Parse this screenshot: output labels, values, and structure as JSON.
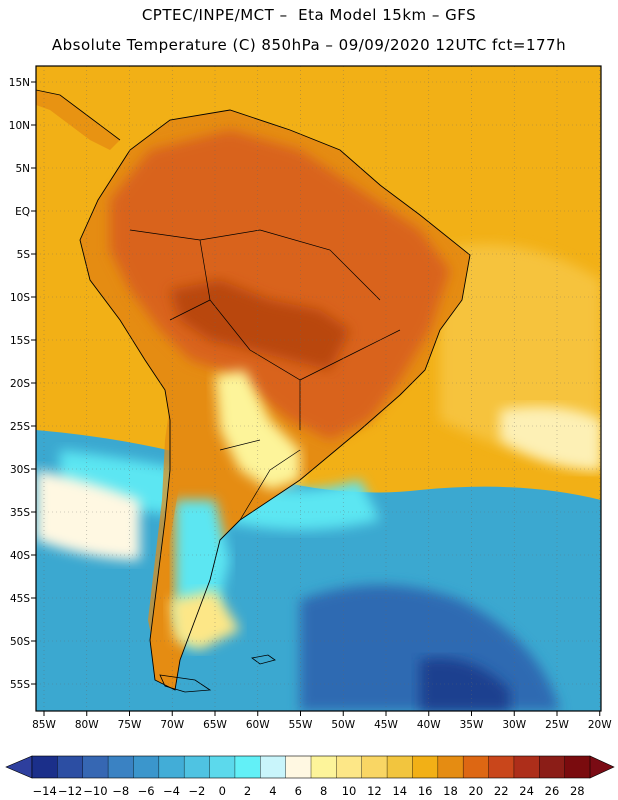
{
  "header": {
    "title_line1": "CPTEC/INPE/MCT –  Eta Model 15km – GFS",
    "title_line2": "Absolute Temperature (C) 850hPa – 09/09/2020 12UTC fct=177h"
  },
  "map": {
    "region": "South America",
    "lon_ticks": [
      "85W",
      "80W",
      "75W",
      "70W",
      "65W",
      "60W",
      "55W",
      "50W",
      "45W",
      "40W",
      "35W",
      "30W",
      "25W",
      "20W"
    ],
    "lat_ticks": [
      "15N",
      "10N",
      "5N",
      "EQ",
      "5S",
      "10S",
      "15S",
      "20S",
      "25S",
      "30S",
      "35S",
      "40S",
      "45S",
      "50S",
      "55S"
    ],
    "colors": {
      "ocean_north": "#f2b016",
      "land_hot": "#d9631c",
      "land_hotter": "#b9470e",
      "south_cold": "#3ba8d0",
      "south_colder": "#2d6bb2",
      "cyan": "#5be6f2",
      "pale_yellow": "#fde787"
    }
  },
  "colorbar": {
    "labels": [
      "-14",
      "-12",
      "-10",
      "-8",
      "-6",
      "-4",
      "-2",
      "0",
      "2",
      "4",
      "6",
      "8",
      "10",
      "12",
      "14",
      "16",
      "18",
      "20",
      "22",
      "24",
      "26",
      "28"
    ],
    "colors": [
      "#1b2f8a",
      "#2c4ea3",
      "#3667b3",
      "#3a82c3",
      "#3b96cc",
      "#42add7",
      "#4fc3e2",
      "#5cd9ec",
      "#62f0f7",
      "#c9f5fb",
      "#fff8e2",
      "#fdf49a",
      "#fde787",
      "#f9d664",
      "#f2c53e",
      "#f2b016",
      "#e58c12",
      "#dd6713",
      "#c9461b",
      "#ad2e1a",
      "#8b1d17",
      "#7a0b0e"
    ],
    "left_arrow_color": "#2e3f9e",
    "right_arrow_color": "#7a0b14"
  }
}
